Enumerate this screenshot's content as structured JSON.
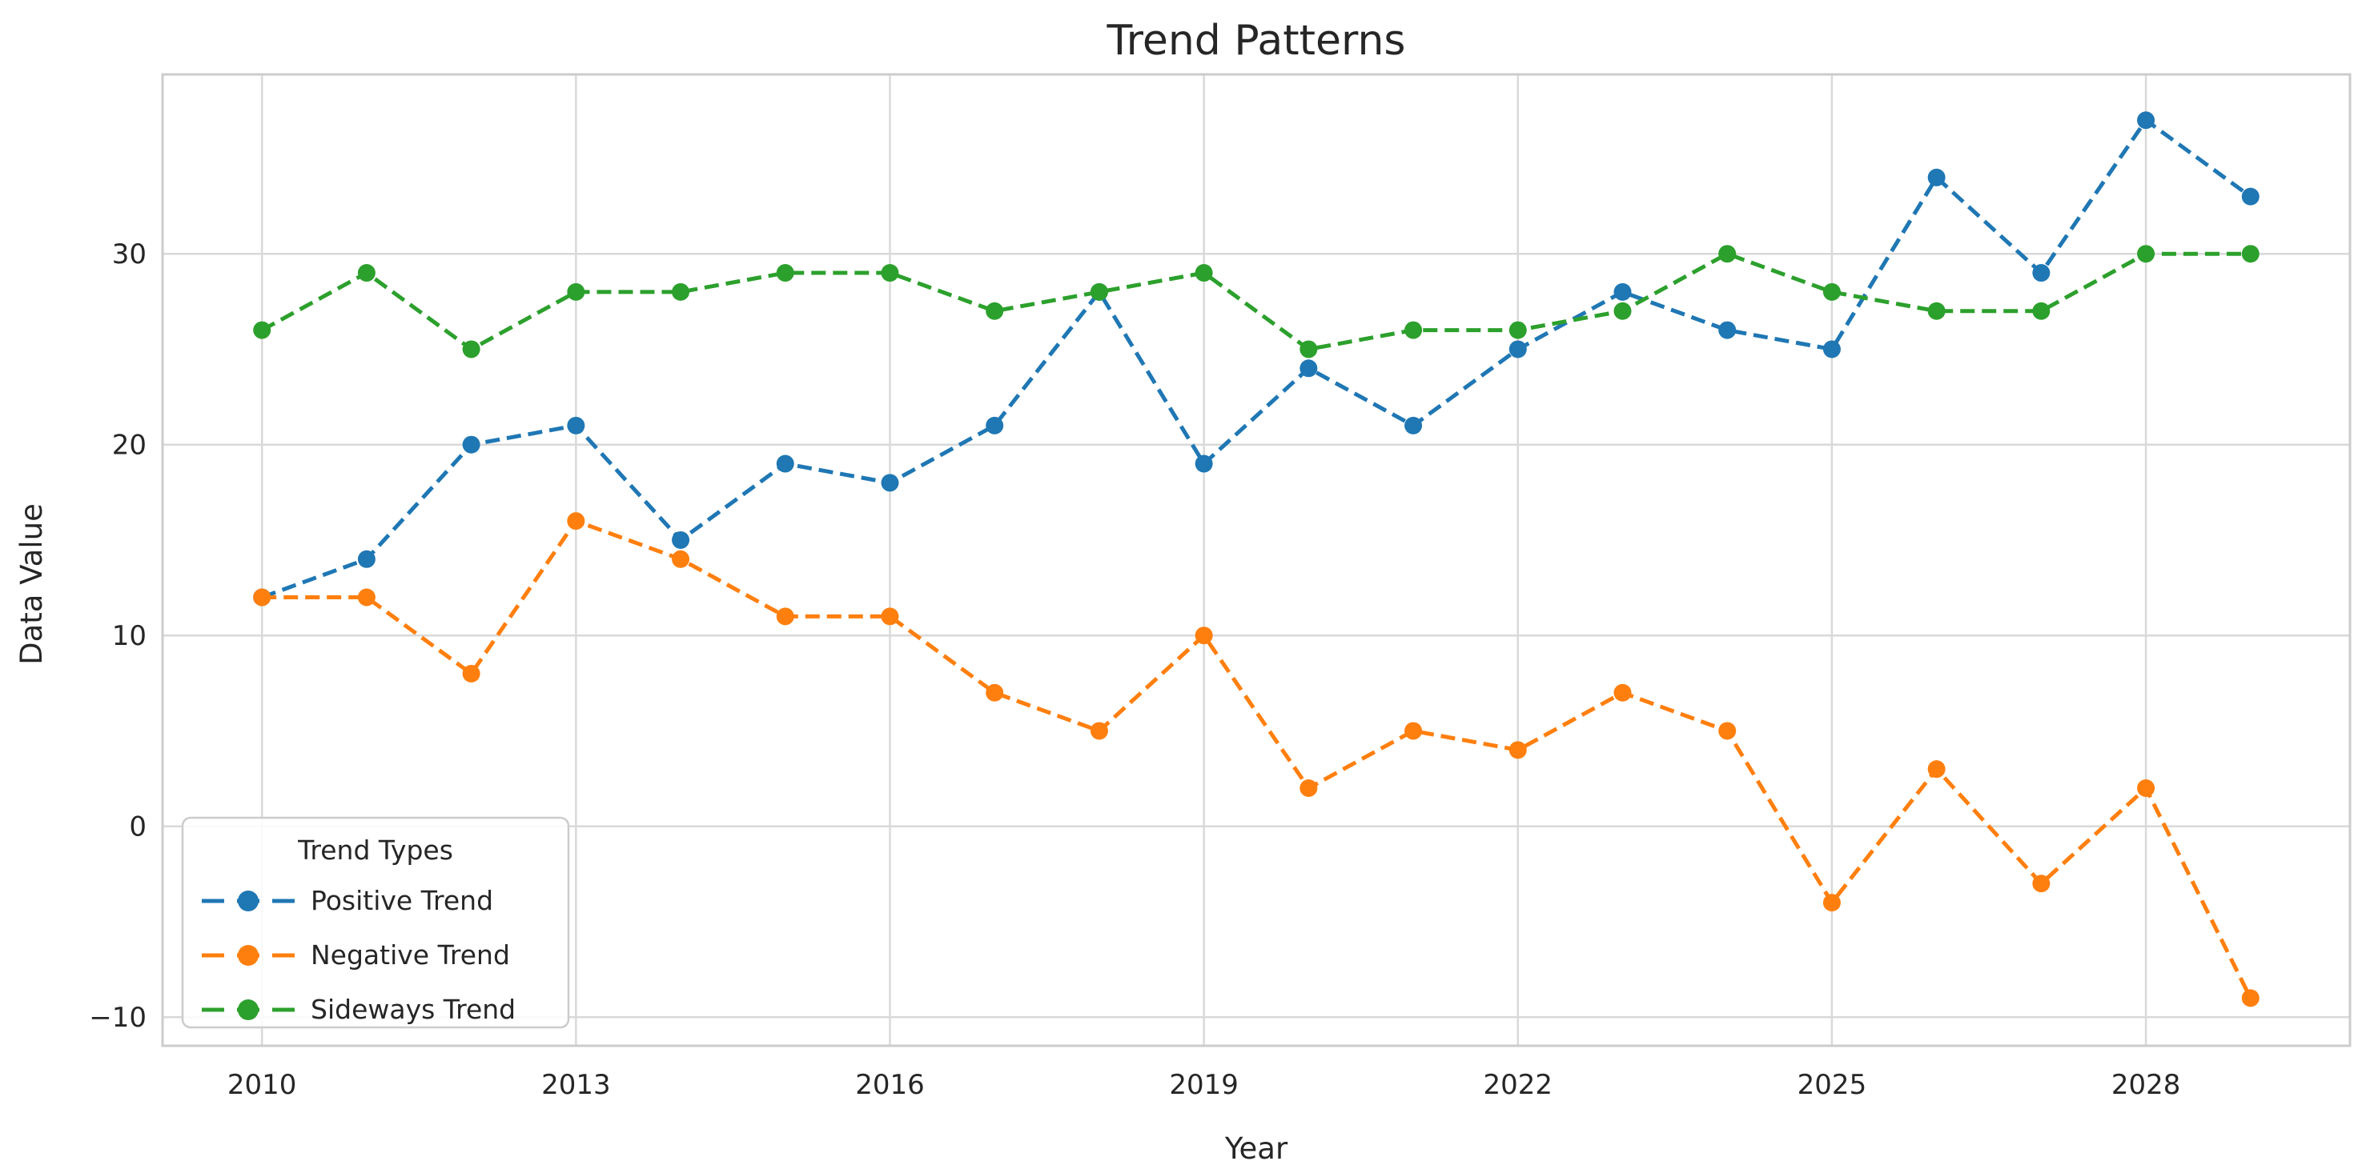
{
  "chart_data": {
    "type": "line",
    "title": "Trend Patterns",
    "xlabel": "Year",
    "ylabel": "Data Value",
    "x": [
      2010,
      2011,
      2012,
      2013,
      2014,
      2015,
      2016,
      2017,
      2018,
      2019,
      2020,
      2021,
      2022,
      2023,
      2024,
      2025,
      2026,
      2027,
      2028,
      2029
    ],
    "series": [
      {
        "name": "Positive Trend",
        "color": "#1f77b4",
        "values": [
          12,
          14,
          20,
          21,
          15,
          19,
          18,
          21,
          28,
          19,
          24,
          21,
          25,
          28,
          26,
          25,
          34,
          29,
          37,
          33
        ]
      },
      {
        "name": "Negative Trend",
        "color": "#ff7f0e",
        "values": [
          12,
          12,
          8,
          16,
          14,
          11,
          11,
          7,
          5,
          10,
          2,
          5,
          4,
          7,
          5,
          -4,
          3,
          -3,
          2,
          -9
        ]
      },
      {
        "name": "Sideways Trend",
        "color": "#2ca02c",
        "values": [
          26,
          29,
          25,
          28,
          28,
          29,
          29,
          27,
          28,
          29,
          25,
          26,
          26,
          27,
          30,
          28,
          27,
          27,
          30,
          30
        ]
      }
    ],
    "x_ticks": [
      2010,
      2013,
      2016,
      2019,
      2022,
      2025,
      2028
    ],
    "y_ticks": [
      -10,
      0,
      10,
      20,
      30
    ],
    "y_tick_labels": [
      "−10",
      "0",
      "10",
      "20",
      "30"
    ],
    "xlim": [
      2009.05,
      2029.95
    ],
    "ylim": [
      -11.5,
      39.4
    ],
    "grid": true,
    "line_style": "dashed",
    "marker": "circle",
    "legend": {
      "title": "Trend Types",
      "position": "lower left"
    },
    "colors": {
      "grid": "#d9d9d9",
      "spine": "#cccccc",
      "text": "#262626",
      "background": "#ffffff"
    }
  }
}
